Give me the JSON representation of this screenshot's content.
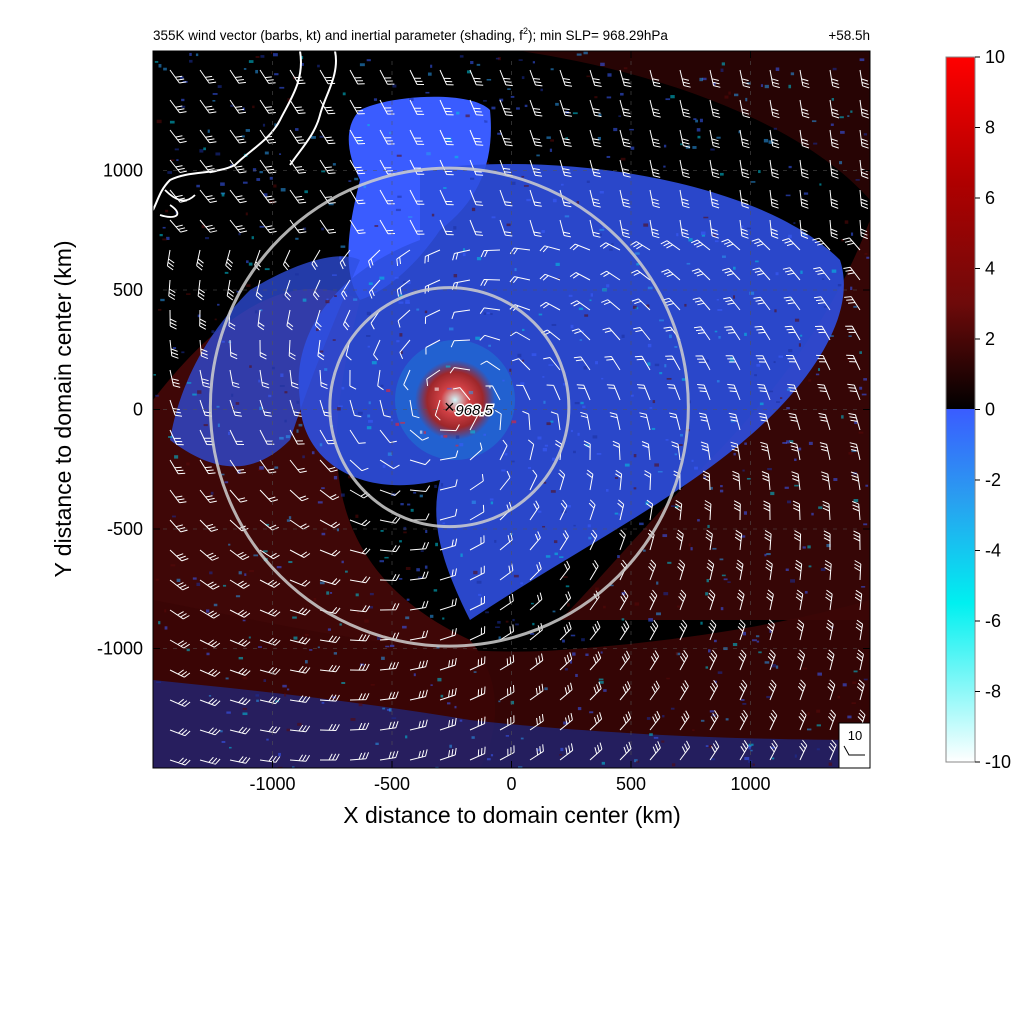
{
  "chart_data": {
    "type": "heatmap",
    "title_parts": [
      "355K wind vector (barbs, kt) and inertial parameter (shading, f",
      "2",
      "); min SLP= 968.29hPa"
    ],
    "forecast_time": "+58.5h",
    "xlabel": "X distance to domain center (km)",
    "ylabel": "Y distance to domain center (km)",
    "xlim": [
      -1500,
      1500
    ],
    "ylim": [
      -1500,
      1500
    ],
    "x_ticks": [
      -1000,
      -500,
      0,
      500,
      1000
    ],
    "y_ticks": [
      -1000,
      -500,
      0,
      500,
      1000
    ],
    "x_tick_labels": [
      "-1000",
      "-500",
      "0",
      "500",
      "1000"
    ],
    "y_tick_labels": [
      "-1000",
      "-500",
      "0",
      "500",
      "1000"
    ],
    "grid": "dashed",
    "colorbar": {
      "min": -10,
      "max": 10,
      "ticks": [
        10,
        8,
        6,
        4,
        2,
        0,
        -2,
        -4,
        -6,
        -8,
        -10
      ],
      "tick_labels": [
        "10",
        "8",
        "6",
        "4",
        "2",
        "0",
        "-2",
        "-4",
        "-6",
        "-8",
        "-10"
      ],
      "positive_colors": [
        "#000000",
        "#6e0a0a",
        "#b00000",
        "#ff0000"
      ],
      "negative_colors": [
        "#3a5cff",
        "#2a9df0",
        "#00f0f0",
        "#ffffff"
      ]
    },
    "storm_center": {
      "x": -260,
      "y": 10,
      "label": "968.5",
      "marker": "×"
    },
    "range_rings_km": [
      500,
      1000
    ],
    "barb_reference": {
      "label": "10",
      "speed_kt": 10
    },
    "min_slp_hpa": 968.29
  }
}
